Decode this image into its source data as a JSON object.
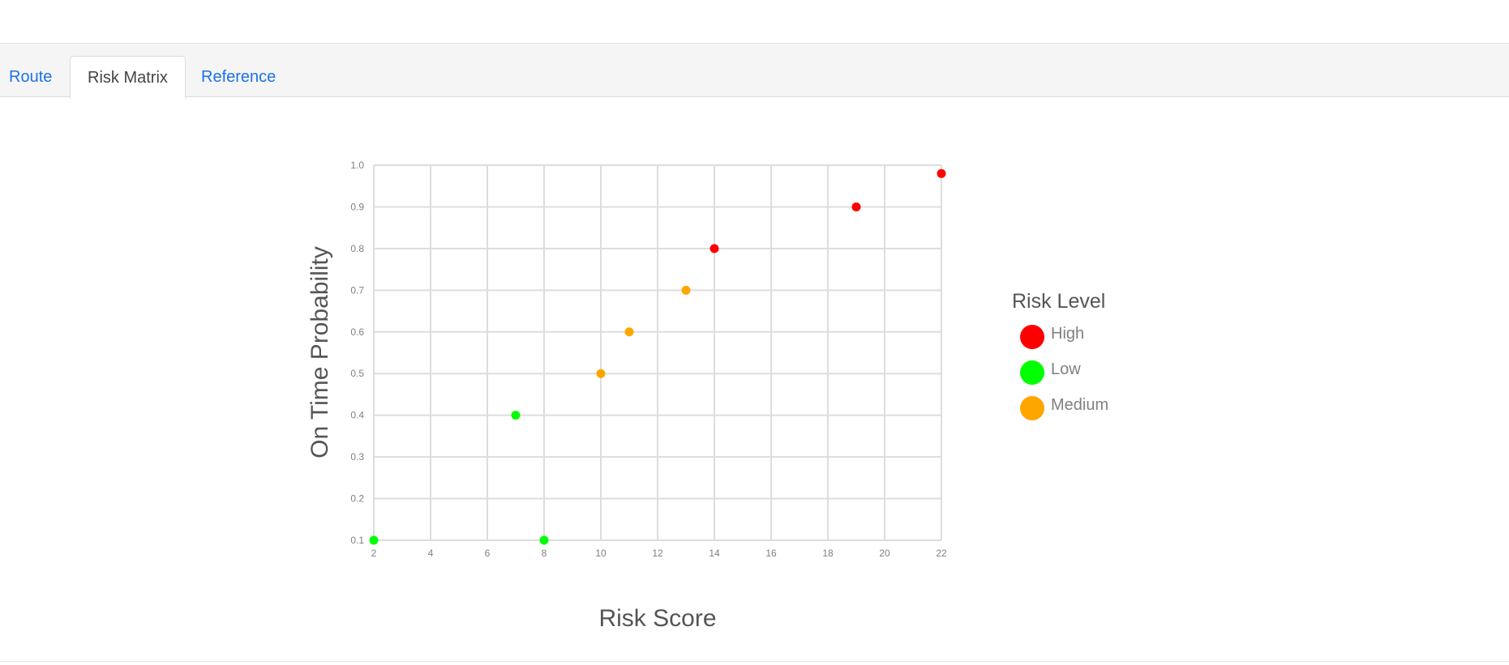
{
  "tabs": [
    {
      "label": "Route",
      "active": false
    },
    {
      "label": "Risk Matrix",
      "active": true
    },
    {
      "label": "Reference",
      "active": false
    }
  ],
  "chart_data": {
    "type": "scatter",
    "xlabel": "Risk Score",
    "ylabel": "On Time Probability",
    "xlim": [
      2,
      22
    ],
    "ylim": [
      0.1,
      1.0
    ],
    "x_ticks": [
      "2",
      "4",
      "6",
      "8",
      "10",
      "12",
      "14",
      "16",
      "18",
      "20",
      "22"
    ],
    "y_ticks": [
      "0.1",
      "0.2",
      "0.3",
      "0.4",
      "0.5",
      "0.6",
      "0.7",
      "0.8",
      "0.9",
      "1.0"
    ],
    "grid": true,
    "legend": {
      "title": "Risk Level",
      "placement": "right",
      "entries": [
        {
          "name": "High",
          "color": "#ff0000"
        },
        {
          "name": "Low",
          "color": "#00ff00"
        },
        {
          "name": "Medium",
          "color": "#ffa500"
        }
      ]
    },
    "series": [
      {
        "name": "High",
        "color": "#ff0000",
        "points": [
          [
            14,
            0.8
          ],
          [
            19,
            0.9
          ],
          [
            22,
            0.98
          ]
        ]
      },
      {
        "name": "Low",
        "color": "#00ff00",
        "points": [
          [
            2,
            0.1
          ],
          [
            7,
            0.4
          ],
          [
            8,
            0.1
          ]
        ]
      },
      {
        "name": "Medium",
        "color": "#ffa500",
        "points": [
          [
            10,
            0.5
          ],
          [
            11,
            0.6
          ],
          [
            13,
            0.7
          ]
        ]
      }
    ]
  }
}
